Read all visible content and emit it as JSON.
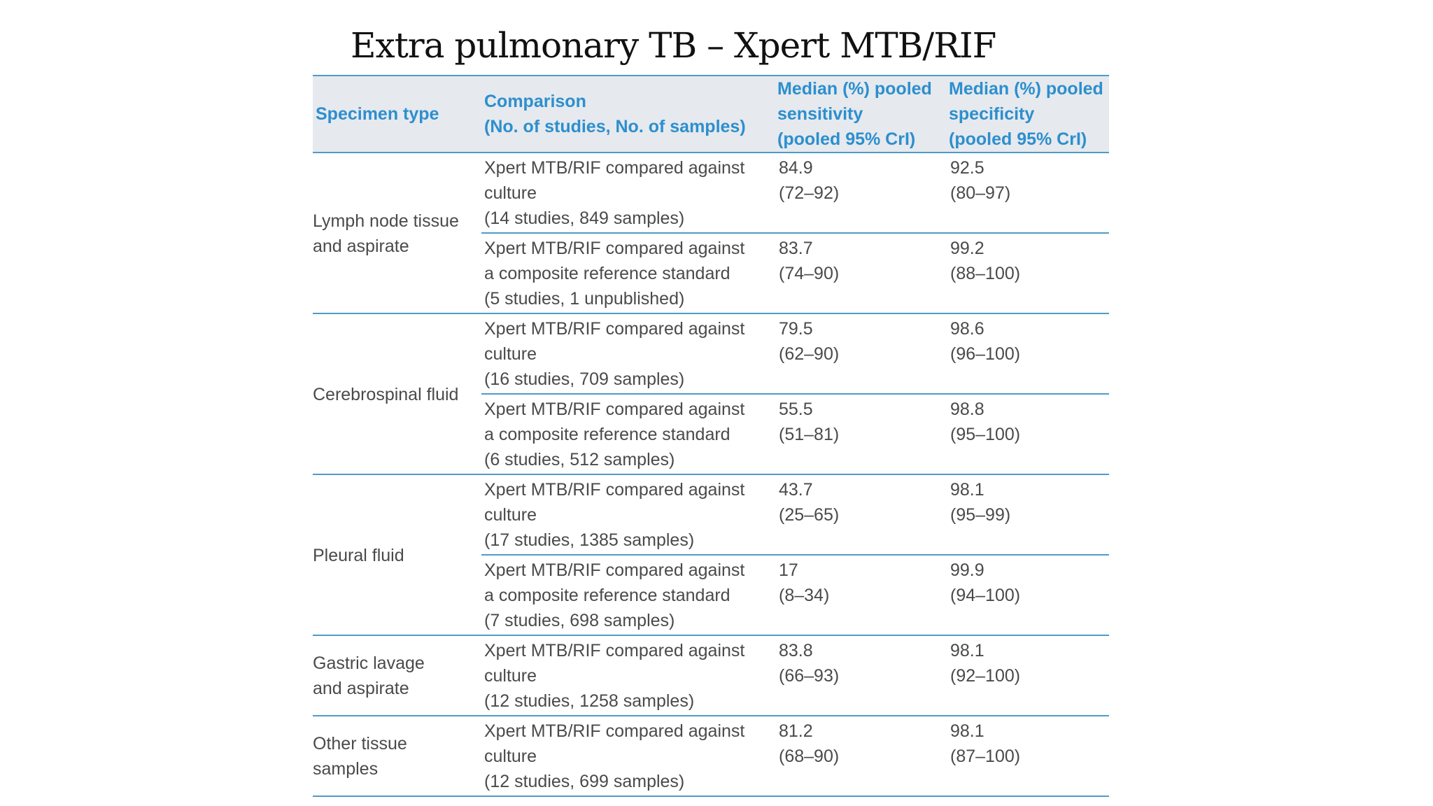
{
  "title": "Extra pulmonary TB – Xpert MTB/RIF",
  "table": {
    "headers": [
      "Specimen type",
      "Comparison\n(No. of studies, No. of samples)",
      "Median (%) pooled\nsensitivity\n(pooled 95% CrI)",
      "Median (%) pooled\nspecificity\n(pooled 95% CrI)"
    ],
    "groups": [
      {
        "specimen": "Lymph node tissue\nand aspirate",
        "rows": [
          {
            "comparison": "Xpert MTB/RIF compared against\nculture\n(14 studies, 849 samples)",
            "sensitivity": "84.9\n(72–92)",
            "specificity": "92.5\n(80–97)"
          },
          {
            "comparison": "Xpert MTB/RIF compared against\na composite reference standard\n(5 studies, 1 unpublished)",
            "sensitivity": "83.7\n(74–90)",
            "specificity": "99.2\n(88–100)"
          }
        ]
      },
      {
        "specimen": "Cerebrospinal fluid",
        "rows": [
          {
            "comparison": "Xpert MTB/RIF compared against\nculture\n(16 studies, 709 samples)",
            "sensitivity": "79.5\n(62–90)",
            "specificity": "98.6\n(96–100)"
          },
          {
            "comparison": "Xpert MTB/RIF compared against\na composite reference standard\n(6 studies, 512 samples)",
            "sensitivity": "55.5\n(51–81)",
            "specificity": "98.8\n(95–100)"
          }
        ]
      },
      {
        "specimen": "Pleural fluid",
        "rows": [
          {
            "comparison": "Xpert MTB/RIF compared against\nculture\n(17 studies, 1385 samples)",
            "sensitivity": "43.7\n(25–65)",
            "specificity": "98.1\n(95–99)"
          },
          {
            "comparison": "Xpert MTB/RIF compared against\na composite reference standard\n(7 studies, 698 samples)",
            "sensitivity": "17\n(8–34)",
            "specificity": "99.9\n(94–100)"
          }
        ]
      },
      {
        "specimen": "Gastric lavage\nand aspirate",
        "rows": [
          {
            "comparison": "Xpert MTB/RIF compared against\nculture\n(12 studies, 1258 samples)",
            "sensitivity": "83.8\n(66–93)",
            "specificity": "98.1\n(92–100)"
          }
        ]
      },
      {
        "specimen": "Other tissue\nsamples",
        "rows": [
          {
            "comparison": "Xpert MTB/RIF compared against\nculture\n(12 studies, 699 samples)",
            "sensitivity": "81.2\n(68–90)",
            "specificity": "98.1\n(87–100)"
          }
        ]
      }
    ]
  },
  "colors": {
    "header_text": "#2c8fce",
    "header_background": "#e6e9ee",
    "rule": "#4f9bc9",
    "body_text": "#4a4a4a"
  }
}
